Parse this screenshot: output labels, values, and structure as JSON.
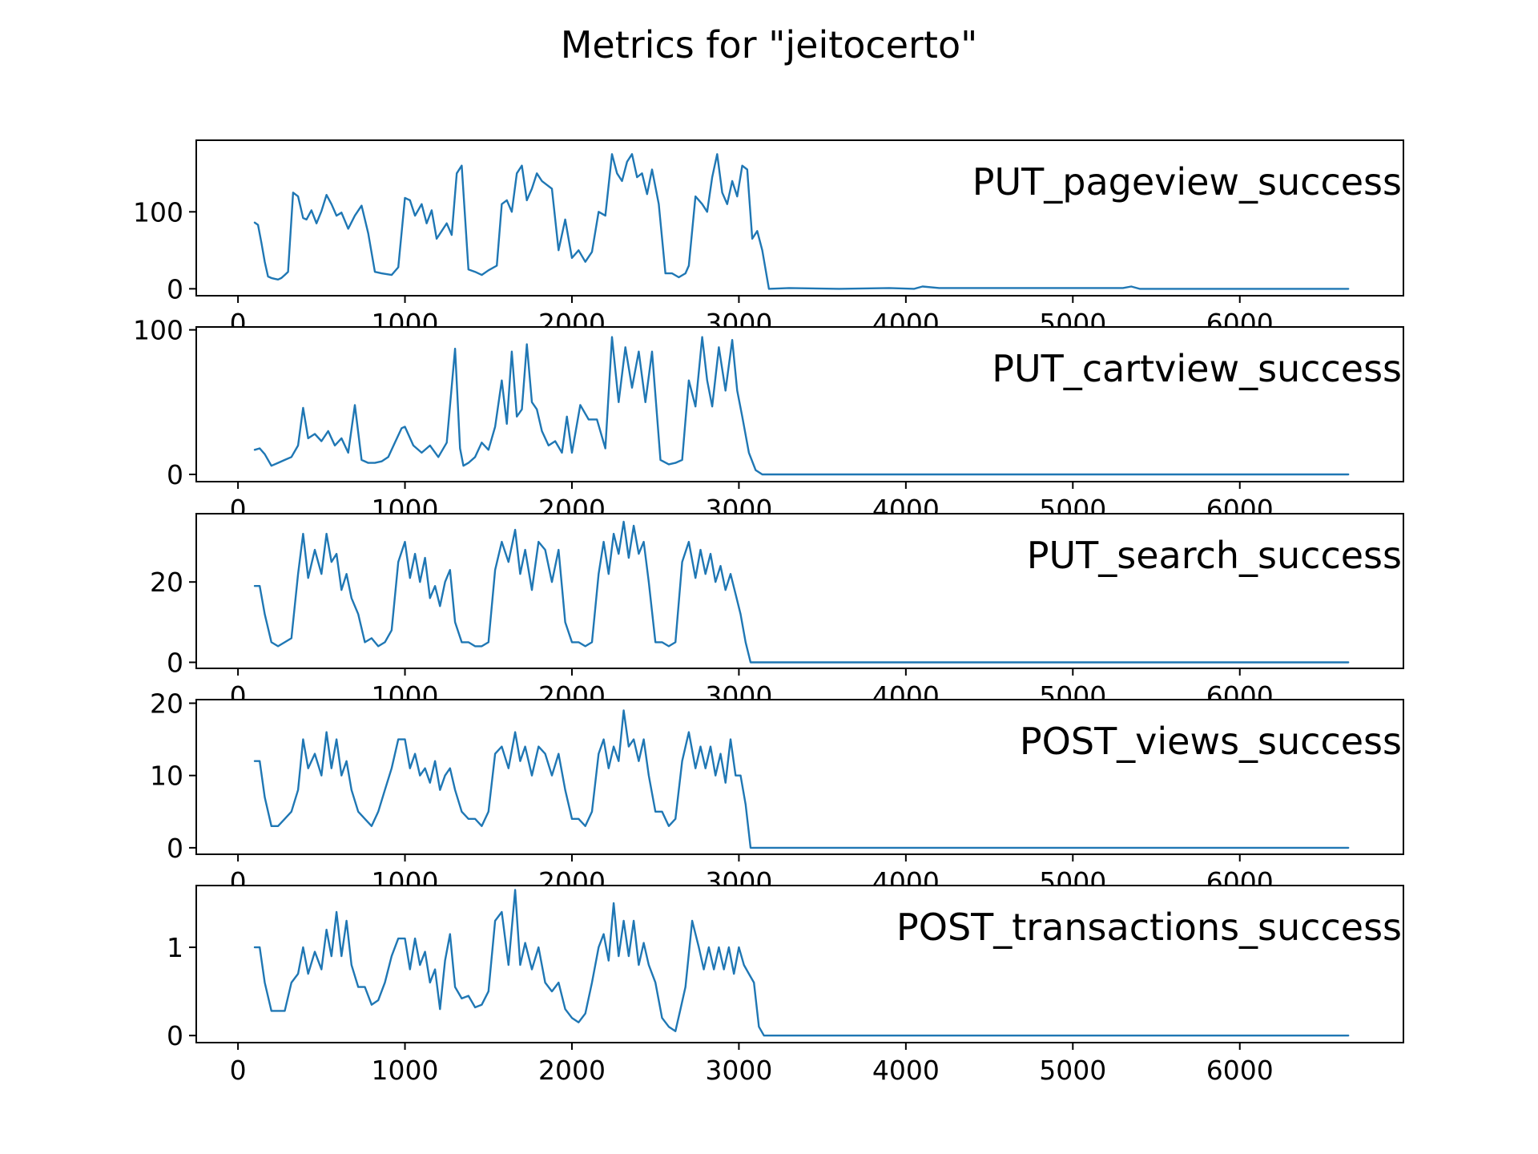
{
  "title": "Metrics for \"jeitocerto\"",
  "line_color": "#1f77b4",
  "chart_data": [
    {
      "type": "line",
      "label": "PUT_pageview_success",
      "xlim": [
        -250,
        6980
      ],
      "ylim": [
        -9,
        193
      ],
      "xticks": [
        0,
        1000,
        2000,
        3000,
        4000,
        5000,
        6000
      ],
      "xtick_labels": [
        "0",
        "1000",
        "2000",
        "3000",
        "4000",
        "5000",
        "6000"
      ],
      "yticks": [
        0,
        100
      ],
      "ytick_labels": [
        "0",
        "100"
      ],
      "x": [
        100,
        120,
        140,
        160,
        180,
        200,
        220,
        240,
        260,
        280,
        300,
        330,
        360,
        390,
        410,
        440,
        470,
        500,
        530,
        560,
        590,
        620,
        660,
        700,
        740,
        780,
        820,
        860,
        920,
        960,
        1000,
        1030,
        1060,
        1100,
        1130,
        1160,
        1190,
        1220,
        1250,
        1280,
        1310,
        1340,
        1380,
        1420,
        1460,
        1500,
        1550,
        1580,
        1610,
        1640,
        1670,
        1700,
        1730,
        1760,
        1790,
        1820,
        1850,
        1880,
        1920,
        1960,
        2000,
        2040,
        2080,
        2120,
        2160,
        2200,
        2240,
        2270,
        2300,
        2330,
        2360,
        2390,
        2420,
        2450,
        2480,
        2520,
        2560,
        2600,
        2640,
        2680,
        2700,
        2740,
        2780,
        2810,
        2840,
        2870,
        2900,
        2930,
        2960,
        2990,
        3020,
        3050,
        3080,
        3110,
        3140,
        3180,
        3300,
        3600,
        3900,
        4050,
        4100,
        4200,
        4500,
        4800,
        5100,
        5300,
        5350,
        5400,
        5700,
        6000,
        6300,
        6650
      ],
      "y": [
        86,
        83,
        60,
        35,
        16,
        14,
        13,
        12,
        14,
        18,
        22,
        125,
        120,
        92,
        90,
        102,
        85,
        101,
        122,
        110,
        95,
        99,
        78,
        95,
        108,
        72,
        22,
        20,
        18,
        28,
        118,
        115,
        95,
        110,
        85,
        102,
        65,
        75,
        85,
        70,
        150,
        160,
        25,
        22,
        18,
        24,
        30,
        110,
        115,
        100,
        150,
        160,
        115,
        130,
        150,
        140,
        135,
        130,
        50,
        90,
        40,
        50,
        35,
        48,
        100,
        95,
        175,
        150,
        140,
        165,
        175,
        145,
        150,
        123,
        155,
        110,
        20,
        20,
        15,
        20,
        30,
        120,
        110,
        100,
        145,
        175,
        125,
        110,
        140,
        120,
        160,
        155,
        65,
        75,
        50,
        0,
        1,
        0,
        1,
        0,
        3,
        1,
        1,
        1,
        1,
        1,
        3,
        0,
        0,
        0,
        0,
        0
      ]
    },
    {
      "type": "line",
      "label": "PUT_cartview_success",
      "xlim": [
        -250,
        6980
      ],
      "ylim": [
        -5,
        102
      ],
      "xticks": [
        0,
        1000,
        2000,
        3000,
        4000,
        5000,
        6000
      ],
      "xtick_labels": [
        "0",
        "1000",
        "2000",
        "3000",
        "4000",
        "5000",
        "6000"
      ],
      "yticks": [
        0,
        100
      ],
      "ytick_labels": [
        "0",
        "100"
      ],
      "x": [
        100,
        130,
        160,
        200,
        240,
        280,
        320,
        360,
        390,
        420,
        460,
        500,
        540,
        580,
        620,
        660,
        700,
        740,
        780,
        820,
        860,
        900,
        940,
        980,
        1000,
        1050,
        1100,
        1150,
        1200,
        1250,
        1300,
        1330,
        1350,
        1380,
        1420,
        1460,
        1500,
        1540,
        1580,
        1610,
        1640,
        1670,
        1700,
        1730,
        1760,
        1790,
        1820,
        1860,
        1900,
        1940,
        1970,
        2000,
        2050,
        2100,
        2150,
        2200,
        2240,
        2280,
        2320,
        2360,
        2400,
        2440,
        2480,
        2530,
        2580,
        2620,
        2660,
        2700,
        2740,
        2780,
        2810,
        2840,
        2880,
        2920,
        2960,
        2990,
        3020,
        3060,
        3100,
        3140,
        3180,
        3500,
        4000,
        5000,
        6000,
        6650
      ],
      "y": [
        17,
        18,
        14,
        6,
        8,
        10,
        12,
        20,
        46,
        25,
        28,
        23,
        30,
        20,
        25,
        15,
        48,
        10,
        8,
        8,
        9,
        12,
        22,
        32,
        33,
        20,
        15,
        20,
        12,
        22,
        87,
        18,
        6,
        8,
        12,
        22,
        17,
        33,
        65,
        35,
        85,
        40,
        45,
        90,
        50,
        45,
        30,
        20,
        23,
        15,
        40,
        15,
        48,
        38,
        38,
        18,
        95,
        50,
        88,
        60,
        85,
        50,
        85,
        10,
        7,
        8,
        10,
        65,
        47,
        95,
        65,
        47,
        88,
        58,
        93,
        58,
        40,
        15,
        3,
        0,
        0,
        0,
        0,
        0,
        0,
        0
      ]
    },
    {
      "type": "line",
      "label": "PUT_search_success",
      "xlim": [
        -250,
        6980
      ],
      "ylim": [
        -1.5,
        37
      ],
      "xticks": [
        0,
        1000,
        2000,
        3000,
        4000,
        5000,
        6000
      ],
      "xtick_labels": [
        "0",
        "1000",
        "2000",
        "3000",
        "4000",
        "5000",
        "6000"
      ],
      "yticks": [
        0,
        20
      ],
      "ytick_labels": [
        "0",
        "20"
      ],
      "x": [
        100,
        130,
        160,
        200,
        240,
        280,
        320,
        360,
        390,
        420,
        460,
        500,
        530,
        560,
        590,
        620,
        650,
        680,
        720,
        760,
        800,
        840,
        880,
        920,
        960,
        1000,
        1030,
        1060,
        1090,
        1120,
        1150,
        1180,
        1210,
        1240,
        1270,
        1300,
        1340,
        1380,
        1420,
        1460,
        1500,
        1540,
        1580,
        1620,
        1660,
        1690,
        1720,
        1760,
        1800,
        1840,
        1880,
        1920,
        1960,
        2000,
        2040,
        2080,
        2120,
        2160,
        2190,
        2220,
        2250,
        2280,
        2310,
        2340,
        2370,
        2400,
        2430,
        2460,
        2500,
        2540,
        2580,
        2620,
        2660,
        2700,
        2740,
        2770,
        2800,
        2830,
        2860,
        2890,
        2920,
        2950,
        2980,
        3010,
        3040,
        3070,
        3100,
        3140,
        3180,
        3500,
        4000,
        5000,
        6000,
        6650
      ],
      "y": [
        19,
        19,
        12,
        5,
        4,
        5,
        6,
        22,
        32,
        21,
        28,
        22,
        32,
        25,
        27,
        18,
        22,
        16,
        12,
        5,
        6,
        4,
        5,
        8,
        25,
        30,
        21,
        27,
        20,
        26,
        16,
        19,
        14,
        20,
        23,
        10,
        5,
        5,
        4,
        4,
        5,
        23,
        30,
        25,
        33,
        22,
        28,
        18,
        30,
        28,
        20,
        28,
        10,
        5,
        5,
        4,
        5,
        22,
        30,
        22,
        32,
        27,
        35,
        26,
        34,
        27,
        30,
        20,
        5,
        5,
        4,
        5,
        25,
        30,
        21,
        28,
        22,
        27,
        20,
        24,
        18,
        22,
        17,
        12,
        5,
        0,
        0,
        0,
        0,
        0,
        0,
        0,
        0,
        0
      ]
    },
    {
      "type": "line",
      "label": "POST_views_success",
      "xlim": [
        -250,
        6980
      ],
      "ylim": [
        -0.9,
        20.5
      ],
      "xticks": [
        0,
        1000,
        2000,
        3000,
        4000,
        5000,
        6000
      ],
      "xtick_labels": [
        "0",
        "1000",
        "2000",
        "3000",
        "4000",
        "5000",
        "6000"
      ],
      "yticks": [
        0,
        10,
        20
      ],
      "ytick_labels": [
        "0",
        "10",
        "20"
      ],
      "x": [
        100,
        130,
        160,
        200,
        240,
        280,
        320,
        360,
        390,
        420,
        460,
        500,
        530,
        560,
        590,
        620,
        650,
        680,
        720,
        760,
        800,
        840,
        880,
        920,
        960,
        1000,
        1030,
        1060,
        1090,
        1120,
        1150,
        1180,
        1210,
        1240,
        1270,
        1300,
        1340,
        1380,
        1420,
        1460,
        1500,
        1540,
        1580,
        1620,
        1660,
        1690,
        1720,
        1760,
        1800,
        1840,
        1880,
        1920,
        1960,
        2000,
        2040,
        2080,
        2120,
        2160,
        2190,
        2220,
        2250,
        2280,
        2310,
        2340,
        2370,
        2400,
        2430,
        2460,
        2500,
        2540,
        2580,
        2620,
        2660,
        2700,
        2740,
        2770,
        2800,
        2830,
        2860,
        2890,
        2920,
        2950,
        2980,
        3010,
        3040,
        3070,
        3100,
        3140,
        3180,
        3500,
        4000,
        5000,
        6000,
        6650
      ],
      "y": [
        12,
        12,
        7,
        3,
        3,
        4,
        5,
        8,
        15,
        11,
        13,
        10,
        16,
        11,
        15,
        10,
        12,
        8,
        5,
        4,
        3,
        5,
        8,
        11,
        15,
        15,
        11,
        13,
        10,
        11,
        9,
        12,
        8,
        10,
        11,
        8,
        5,
        4,
        4,
        3,
        5,
        13,
        14,
        11,
        16,
        12,
        14,
        10,
        14,
        13,
        10,
        13,
        8,
        4,
        4,
        3,
        5,
        13,
        15,
        11,
        14,
        12,
        19,
        14,
        15,
        12,
        15,
        10,
        5,
        5,
        3,
        4,
        12,
        16,
        11,
        14,
        11,
        14,
        10,
        13,
        9,
        15,
        10,
        10,
        6,
        0,
        0,
        0,
        0,
        0,
        0,
        0,
        0,
        0
      ]
    },
    {
      "type": "line",
      "label": "POST_transactions_success",
      "xlim": [
        -250,
        6980
      ],
      "ylim": [
        -0.08,
        1.7
      ],
      "xticks": [
        0,
        1000,
        2000,
        3000,
        4000,
        5000,
        6000
      ],
      "xtick_labels": [
        "0",
        "1000",
        "2000",
        "3000",
        "4000",
        "5000",
        "6000"
      ],
      "yticks": [
        0,
        1
      ],
      "ytick_labels": [
        "0",
        "1"
      ],
      "x": [
        100,
        130,
        160,
        200,
        240,
        280,
        320,
        360,
        390,
        420,
        460,
        500,
        530,
        560,
        590,
        620,
        650,
        680,
        720,
        760,
        800,
        840,
        880,
        920,
        960,
        1000,
        1030,
        1060,
        1090,
        1120,
        1150,
        1180,
        1210,
        1240,
        1270,
        1300,
        1340,
        1380,
        1420,
        1460,
        1500,
        1540,
        1580,
        1620,
        1660,
        1690,
        1720,
        1760,
        1800,
        1840,
        1880,
        1920,
        1960,
        2000,
        2040,
        2080,
        2120,
        2160,
        2190,
        2220,
        2250,
        2280,
        2310,
        2340,
        2370,
        2400,
        2430,
        2460,
        2500,
        2540,
        2580,
        2620,
        2650,
        2680,
        2720,
        2760,
        2790,
        2820,
        2850,
        2880,
        2910,
        2940,
        2970,
        3000,
        3030,
        3060,
        3090,
        3120,
        3150,
        3180,
        3500,
        4000,
        5000,
        6000,
        6650
      ],
      "y": [
        1.0,
        1.0,
        0.6,
        0.28,
        0.28,
        0.28,
        0.6,
        0.7,
        1.0,
        0.7,
        0.95,
        0.75,
        1.2,
        0.9,
        1.4,
        0.9,
        1.3,
        0.8,
        0.55,
        0.55,
        0.35,
        0.4,
        0.6,
        0.9,
        1.1,
        1.1,
        0.75,
        1.1,
        0.8,
        0.95,
        0.6,
        0.75,
        0.3,
        0.85,
        1.15,
        0.55,
        0.42,
        0.45,
        0.32,
        0.35,
        0.5,
        1.3,
        1.4,
        0.8,
        1.65,
        0.8,
        1.05,
        0.75,
        1.0,
        0.6,
        0.5,
        0.6,
        0.3,
        0.2,
        0.15,
        0.25,
        0.6,
        1.0,
        1.15,
        0.85,
        1.5,
        0.9,
        1.3,
        0.9,
        1.3,
        0.8,
        1.05,
        0.8,
        0.6,
        0.2,
        0.1,
        0.05,
        0.3,
        0.55,
        1.3,
        1.0,
        0.75,
        1.0,
        0.75,
        1.0,
        0.75,
        1.0,
        0.7,
        1.0,
        0.8,
        0.7,
        0.6,
        0.1,
        0.0,
        0.0,
        0.0,
        0.0,
        0.0,
        0.0,
        0.0
      ]
    }
  ]
}
